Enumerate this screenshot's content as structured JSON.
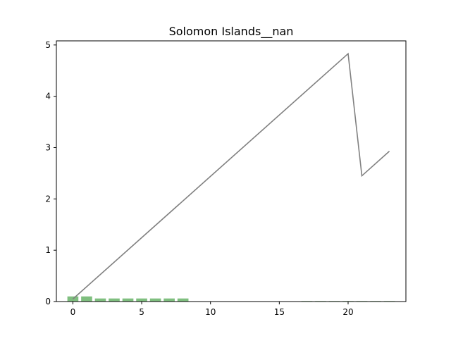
{
  "chart_data": {
    "type": "bar+line",
    "title": "Solomon Islands__nan",
    "xlabel": "",
    "ylabel": "",
    "xlim": [
      -1.2,
      24.2
    ],
    "ylim": [
      0,
      5.08
    ],
    "x_ticks": [
      0,
      5,
      10,
      15,
      20
    ],
    "y_ticks": [
      0,
      1,
      2,
      3,
      4,
      5
    ],
    "grid": false,
    "bar_series": {
      "color": "#7fbf7f",
      "x": [
        0,
        1,
        2,
        3,
        4,
        5,
        6,
        7,
        8,
        17,
        18,
        19,
        20,
        21,
        22,
        23
      ],
      "values": [
        0.1,
        0.1,
        0.06,
        0.06,
        0.06,
        0.06,
        0.06,
        0.06,
        0.06,
        0.01,
        0.01,
        0.01,
        0.01,
        0.01,
        0.01,
        0.01
      ]
    },
    "line_series": {
      "color": "#808080",
      "x": [
        0,
        20,
        21,
        23
      ],
      "values": [
        0.05,
        4.83,
        2.45,
        2.93
      ]
    }
  }
}
